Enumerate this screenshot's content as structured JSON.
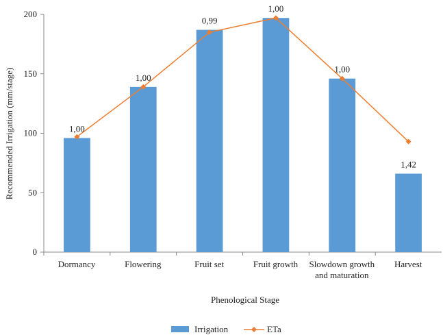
{
  "chart_data": {
    "type": "bar_line",
    "x_label": "Phenological Stage",
    "y_label": "Recommended Irrigation (mm/stage)",
    "categories": [
      "Dormancy",
      "Flowering",
      "Fruit set",
      "Fruit growth",
      "Slowdown growth and maturation",
      "Harvest"
    ],
    "series": [
      {
        "name": "Irrigation",
        "type": "bar",
        "color": "#5b9bd5",
        "values": [
          96,
          139,
          187,
          197,
          146,
          66
        ]
      },
      {
        "name": "ETa",
        "type": "line",
        "color": "#ed7d31",
        "values": [
          97,
          139,
          185,
          197,
          146,
          93
        ]
      }
    ],
    "annotations": [
      "1,00",
      "1,00",
      "0,99",
      "1,00",
      "1,00",
      "1,42"
    ],
    "ylim": [
      0,
      200
    ],
    "yticks": [
      0,
      50,
      100,
      150,
      200
    ],
    "legend": "bottom"
  }
}
